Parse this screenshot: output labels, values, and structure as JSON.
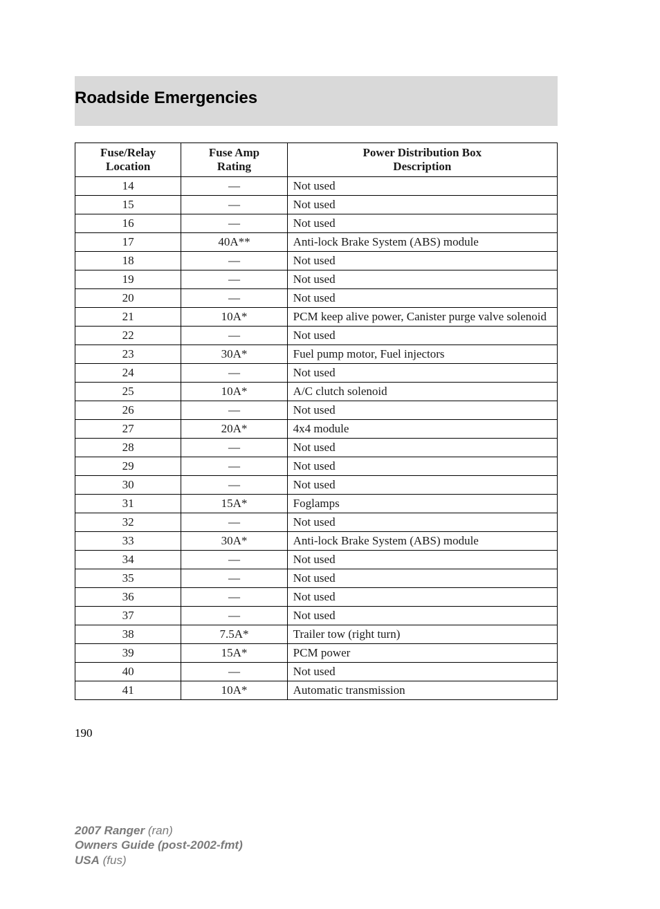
{
  "header": {
    "title": "Roadside Emergencies"
  },
  "table": {
    "columns": [
      {
        "line1": "Fuse/Relay",
        "line2": "Location"
      },
      {
        "line1": "Fuse Amp",
        "line2": "Rating"
      },
      {
        "line1": "Power Distribution Box",
        "line2": "Description"
      }
    ],
    "rows": [
      {
        "loc": "14",
        "amp": "—",
        "desc": "Not used"
      },
      {
        "loc": "15",
        "amp": "—",
        "desc": "Not used"
      },
      {
        "loc": "16",
        "amp": "—",
        "desc": "Not used"
      },
      {
        "loc": "17",
        "amp": "40A**",
        "desc": "Anti-lock Brake System (ABS) module"
      },
      {
        "loc": "18",
        "amp": "—",
        "desc": "Not used"
      },
      {
        "loc": "19",
        "amp": "—",
        "desc": "Not used"
      },
      {
        "loc": "20",
        "amp": "—",
        "desc": "Not used"
      },
      {
        "loc": "21",
        "amp": "10A*",
        "desc": "PCM keep alive power, Canister purge valve solenoid"
      },
      {
        "loc": "22",
        "amp": "—",
        "desc": "Not used"
      },
      {
        "loc": "23",
        "amp": "30A*",
        "desc": "Fuel pump motor, Fuel injectors"
      },
      {
        "loc": "24",
        "amp": "—",
        "desc": "Not used"
      },
      {
        "loc": "25",
        "amp": "10A*",
        "desc": "A/C clutch solenoid"
      },
      {
        "loc": "26",
        "amp": "—",
        "desc": "Not used"
      },
      {
        "loc": "27",
        "amp": "20A*",
        "desc": "4x4 module"
      },
      {
        "loc": "28",
        "amp": "—",
        "desc": "Not used"
      },
      {
        "loc": "29",
        "amp": "—",
        "desc": "Not used"
      },
      {
        "loc": "30",
        "amp": "—",
        "desc": "Not used"
      },
      {
        "loc": "31",
        "amp": "15A*",
        "desc": "Foglamps"
      },
      {
        "loc": "32",
        "amp": "—",
        "desc": "Not used"
      },
      {
        "loc": "33",
        "amp": "30A*",
        "desc": "Anti-lock Brake System (ABS) module"
      },
      {
        "loc": "34",
        "amp": "—",
        "desc": "Not used"
      },
      {
        "loc": "35",
        "amp": "—",
        "desc": "Not used"
      },
      {
        "loc": "36",
        "amp": "—",
        "desc": "Not used"
      },
      {
        "loc": "37",
        "amp": "—",
        "desc": "Not used"
      },
      {
        "loc": "38",
        "amp": "7.5A*",
        "desc": "Trailer tow (right turn)"
      },
      {
        "loc": "39",
        "amp": "15A*",
        "desc": "PCM power"
      },
      {
        "loc": "40",
        "amp": "—",
        "desc": "Not used"
      },
      {
        "loc": "41",
        "amp": "10A*",
        "desc": "Automatic transmission"
      }
    ]
  },
  "pageNumber": "190",
  "footer": {
    "line1_bold": "2007 Ranger",
    "line1_italic": " (ran)",
    "line2_bold": "Owners Guide (post-2002-fmt)",
    "line3_bold": "USA",
    "line3_italic": " (fus)"
  }
}
